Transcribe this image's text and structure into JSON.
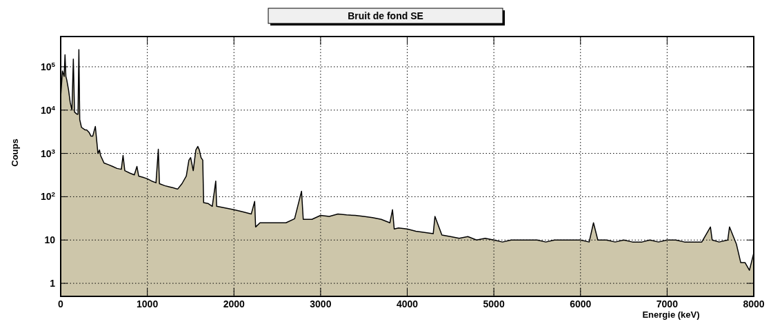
{
  "chart_data": {
    "type": "area",
    "title": "Bruit de fond SE",
    "xlabel": "Energie (keV)",
    "ylabel": "Coups",
    "log": "y",
    "grid": true,
    "xlim": [
      0,
      8000
    ],
    "xticks": [
      0,
      1000,
      2000,
      3000,
      4000,
      5000,
      6000,
      7000,
      8000
    ],
    "ylim": [
      0.5,
      500000
    ],
    "yticks": [
      1,
      10,
      {
        "value": 100,
        "label": "10$^{2}$"
      },
      {
        "value": 1000,
        "label": "10$^{3}$"
      },
      {
        "value": 10000,
        "label": "10$^{4}$"
      },
      {
        "value": 100000,
        "label": "10$^{5}$"
      }
    ],
    "series": [
      {
        "color": "#cdc6aa",
        "x": [
          0,
          20,
          40,
          50,
          60,
          70,
          90,
          110,
          130,
          146,
          160,
          190,
          200,
          210,
          220,
          240,
          280,
          300,
          330,
          350,
          370,
          400,
          430,
          448,
          460,
          500,
          550,
          600,
          650,
          700,
          720,
          740,
          800,
          850,
          880,
          900,
          950,
          1000,
          1050,
          1100,
          1127,
          1140,
          1200,
          1250,
          1300,
          1350,
          1400,
          1450,
          1480,
          1500,
          1530,
          1560,
          1583,
          1600,
          1620,
          1640,
          1650,
          1700,
          1750,
          1790,
          1800,
          1900,
          2000,
          2100,
          2200,
          2239,
          2250,
          2300,
          2400,
          2500,
          2600,
          2700,
          2780,
          2800,
          2900,
          3000,
          3100,
          3200,
          3300,
          3400,
          3500,
          3600,
          3700,
          3800,
          3830,
          3850,
          3900,
          4000,
          4100,
          4200,
          4300,
          4320,
          4400,
          4500,
          4600,
          4700,
          4800,
          4900,
          5000,
          5100,
          5200,
          5300,
          5310,
          5400,
          5500,
          5600,
          5700,
          5800,
          5900,
          6000,
          6100,
          6150,
          6200,
          6300,
          6400,
          6500,
          6600,
          6700,
          6710,
          6800,
          6900,
          7000,
          7100,
          7200,
          7300,
          7400,
          7500,
          7520,
          7600,
          7700,
          7720,
          7800,
          7850,
          7900,
          7950,
          8000
        ],
        "values": [
          20000,
          80000,
          60000,
          190000,
          60000,
          50000,
          30000,
          15000,
          10000,
          150000,
          9000,
          8000,
          8000,
          250000,
          6000,
          4000,
          3500,
          3500,
          3000,
          2500,
          2500,
          4200,
          1000,
          1200,
          900,
          600,
          550,
          500,
          450,
          430,
          900,
          400,
          350,
          320,
          500,
          300,
          280,
          260,
          230,
          210,
          1250,
          200,
          180,
          170,
          160,
          150,
          200,
          300,
          700,
          800,
          400,
          1200,
          1450,
          1200,
          800,
          700,
          73,
          70,
          60,
          230,
          60,
          55,
          50,
          45,
          40,
          78,
          20,
          25,
          25,
          25,
          25,
          31,
          134,
          30,
          30,
          37,
          35,
          40,
          38,
          37,
          35,
          33,
          30,
          25,
          50,
          18,
          19,
          18,
          16,
          15,
          14,
          35,
          13,
          12,
          11,
          12,
          10,
          11,
          10,
          9,
          10,
          null,
          10,
          10,
          10,
          9,
          10,
          10,
          10,
          10,
          9,
          25,
          10,
          10,
          9,
          10,
          9,
          null,
          9,
          10,
          9,
          10,
          10,
          9,
          9,
          9,
          20,
          10,
          9,
          10,
          20,
          8,
          3,
          3,
          2,
          5
        ]
      }
    ]
  }
}
